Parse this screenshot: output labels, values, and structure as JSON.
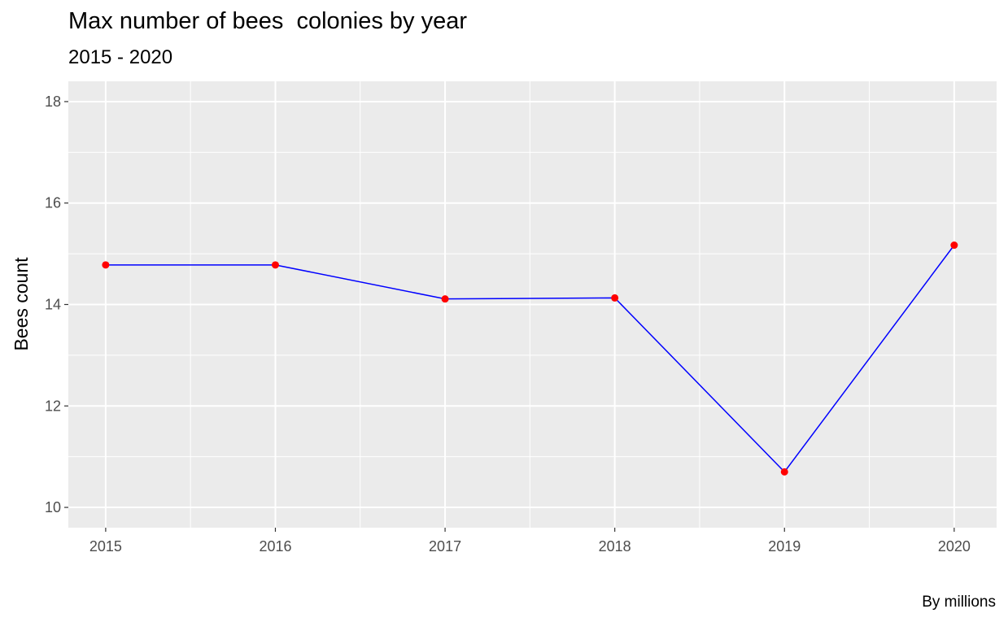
{
  "chart_data": {
    "type": "line",
    "title": "Max number of bees  colonies by year",
    "subtitle": "2015 - 2020",
    "caption": "By millions",
    "xlabel": "",
    "ylabel": "Bees count",
    "x": [
      2015,
      2016,
      2017,
      2018,
      2019,
      2020
    ],
    "series": [
      {
        "values": [
          14.78,
          14.78,
          14.11,
          14.13,
          10.7,
          15.17
        ]
      }
    ],
    "ylim": [
      9.6,
      18.4
    ],
    "xlim": [
      2014.78,
      2020.25
    ],
    "yticks": [
      10,
      12,
      14,
      16,
      18
    ],
    "xticks": [
      2015,
      2016,
      2017,
      2018,
      2019,
      2020
    ],
    "grid": true,
    "legend": "none",
    "colors": {
      "panel_background": "#ebebeb",
      "grid_major": "#ffffff",
      "line": "#0000ff",
      "points": "#ff0000",
      "tick_text": "#4d4d4d",
      "tick_marks": "#333333"
    }
  }
}
